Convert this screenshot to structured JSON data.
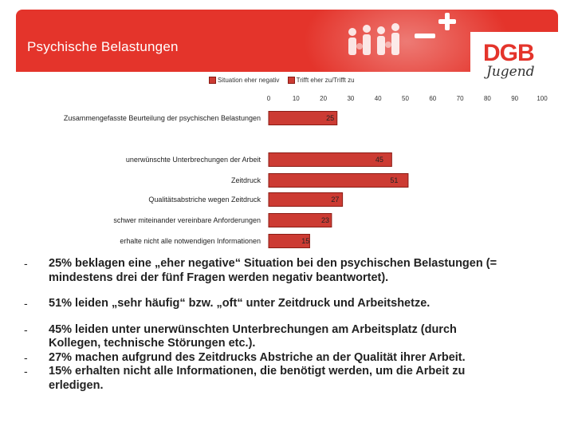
{
  "slide": {
    "title": "Psychische Belastungen",
    "colors": {
      "header": "#e4342b",
      "bar": "#cc3b33",
      "bar_border": "#8b1c15"
    },
    "icons": [
      "people-icon",
      "minus-icon",
      "plus-icon"
    ]
  },
  "logo": {
    "text": "DGB",
    "sub": "Jugend"
  },
  "chart_data": {
    "type": "bar",
    "orientation": "horizontal",
    "categories": [
      "Zusammengefasste Beurteilung der psychischen Belastungen",
      "unerwünschte Unterbrechungen der Arbeit",
      "Zeitdruck",
      "Qualitätsabstriche wegen Zeitdruck",
      "schwer miteinander vereinbare Anforderungen",
      "erhalte nicht alle notwendigen Informationen"
    ],
    "series": [
      {
        "name": "Situation eher negativ",
        "values": [
          25,
          null,
          null,
          null,
          null,
          null
        ]
      },
      {
        "name": "Trifft eher zu/Trifft zu",
        "values": [
          null,
          45,
          51,
          27,
          23,
          15
        ]
      }
    ],
    "xlim": [
      0,
      100
    ],
    "xticks": [
      "0",
      "10",
      "20",
      "30",
      "40",
      "50",
      "60",
      "70",
      "80",
      "90",
      "100"
    ],
    "legend_position": "top",
    "grid": false,
    "axis_position": "top"
  },
  "bullets": [
    {
      "dash": "-",
      "lines": [
        "25% beklagen eine „eher negative“ Situation bei den psychischen Belastungen (=",
        "mindestens drei der fünf Fragen werden negativ beantwortet)."
      ]
    },
    {
      "dash": "-",
      "lines": [
        "51% leiden „sehr häufig“ bzw. „oft“ unter Zeitdruck und Arbeitshetze."
      ]
    },
    {
      "dash": "-",
      "lines": [
        "45% leiden unter unerwünschten Unterbrechungen am Arbeitsplatz (durch",
        "Kollegen, technische Störungen etc.)."
      ]
    },
    {
      "dash": "-",
      "lines": [
        "27% machen aufgrund des Zeitdrucks Abstriche an der Qualität ihrer Arbeit."
      ]
    },
    {
      "dash": "-",
      "lines": [
        "15% erhalten nicht alle Informationen, die benötigt werden, um die Arbeit zu",
        "erledigen."
      ]
    }
  ]
}
